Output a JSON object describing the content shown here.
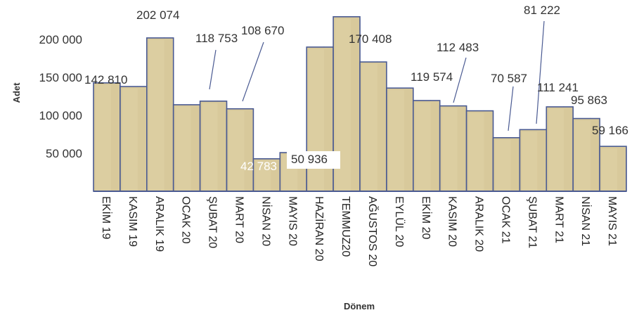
{
  "chart_data": {
    "type": "bar",
    "style": "3d",
    "xlabel": "Dönem",
    "ylabel": "Adet",
    "ylim": [
      0,
      240000
    ],
    "yticks": [
      50000,
      100000,
      150000,
      200000
    ],
    "ytick_labels": [
      "50 000",
      "100 000",
      "150 000",
      "200 000"
    ],
    "categories": [
      "EKİM 19",
      "KASIM 19",
      "ARALIK 19",
      "OCAK 20",
      "ŞUBAT 20",
      "MART 20",
      "NİSAN 20",
      "MAYIS 20",
      "HAZİRAN 20",
      "TEMMUZ20",
      "AĞUSTOS 20",
      "EYLÜL 20",
      "EKİM 20",
      "KASIM 20",
      "ARALIK 20",
      "OCAK 21",
      "ŞUBAT 21",
      "MART 21",
      "NİSAN 21",
      "MAYIS 21"
    ],
    "values": [
      142810,
      138000,
      202074,
      114000,
      118753,
      108670,
      42783,
      50936,
      190000,
      230000,
      170408,
      136000,
      119574,
      112483,
      106000,
      70587,
      81222,
      111241,
      95863,
      59166
    ],
    "data_labels": [
      "142 810",
      "",
      "202 074",
      "",
      "118 753",
      "108 670",
      "42 783",
      "50 936",
      "",
      "",
      "170 408",
      "",
      "119 574",
      "112 483",
      "",
      "70 587",
      "81 222",
      "111 241",
      "95 863",
      "59 166"
    ],
    "colors": {
      "bar_front": "#d8c99b",
      "bar_side": "#847753",
      "bar_top": "#e4d8ad",
      "bar_outline": "#4a5a92",
      "axis": "#4a5a92",
      "leader": "#4a5a92"
    }
  }
}
